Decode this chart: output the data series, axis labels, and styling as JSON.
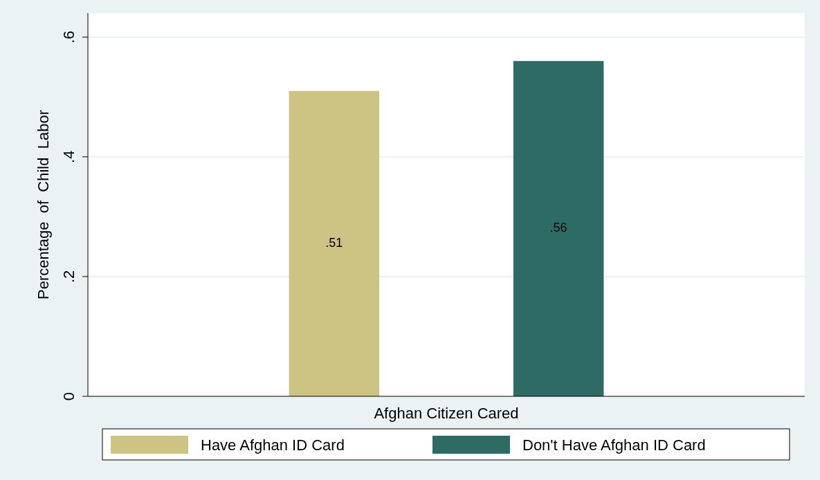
{
  "chart_data": {
    "type": "bar",
    "categories": [
      "Afghan Citizen Cared"
    ],
    "ylabel": "Percentage  of  Child  Labor",
    "series": [
      {
        "name": "Have Afghan ID Card",
        "color": "#cdc383",
        "values": [
          0.51
        ],
        "value_labels": [
          ".51"
        ]
      },
      {
        "name": "Don't Have Afghan ID Card",
        "color": "#2e6b65",
        "values": [
          0.56
        ],
        "value_labels": [
          ".56"
        ]
      }
    ],
    "ylim": [
      0,
      0.64
    ],
    "yticks": [
      0,
      {
        "value": 0.2,
        "label": ".2"
      },
      {
        "value": 0.4,
        "label": ".4"
      },
      {
        "value": 0.6,
        "label": ".6"
      }
    ],
    "grid": "y",
    "legend": "bottom"
  }
}
